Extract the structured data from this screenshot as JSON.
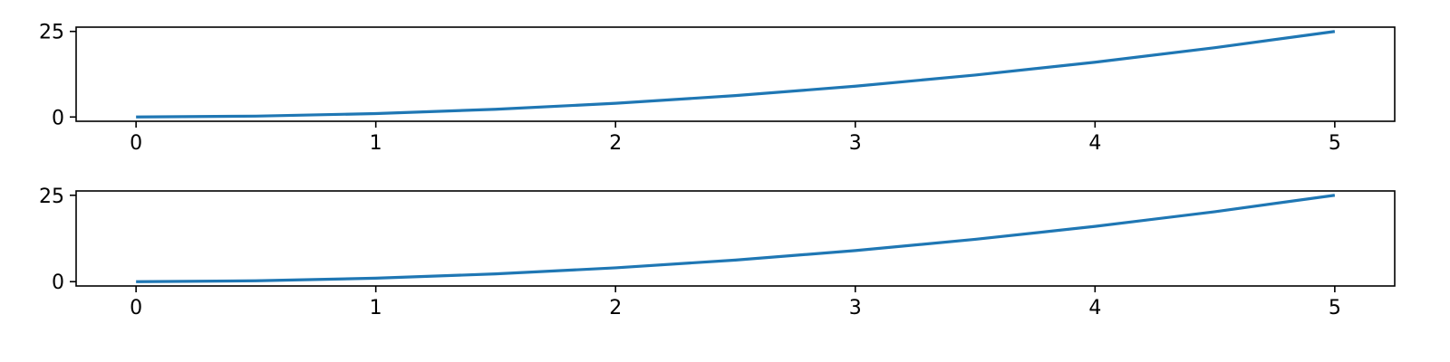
{
  "chart_data": [
    {
      "type": "line",
      "title": "",
      "xlabel": "",
      "ylabel": "",
      "xlim": [
        -0.25,
        5.25
      ],
      "ylim": [
        -1.25,
        26.25
      ],
      "xticks": [
        0,
        1,
        2,
        3,
        4,
        5
      ],
      "xtick_labels": [
        "0",
        "1",
        "2",
        "3",
        "4",
        "5"
      ],
      "yticks": [
        0,
        25
      ],
      "ytick_labels": [
        "0",
        "25"
      ],
      "grid": false,
      "series": [
        {
          "color": "#1f77b4",
          "x": [
            0,
            0.5,
            1,
            1.5,
            2,
            2.5,
            3,
            3.5,
            4,
            4.5,
            5
          ],
          "y": [
            0,
            0.25,
            1,
            2.25,
            4,
            6.25,
            9,
            12.25,
            16,
            20.25,
            25
          ]
        }
      ]
    },
    {
      "type": "line",
      "title": "",
      "xlabel": "",
      "ylabel": "",
      "xlim": [
        -0.25,
        5.25
      ],
      "ylim": [
        -1.25,
        26.25
      ],
      "xticks": [
        0,
        1,
        2,
        3,
        4,
        5
      ],
      "xtick_labels": [
        "0",
        "1",
        "2",
        "3",
        "4",
        "5"
      ],
      "yticks": [
        0,
        25
      ],
      "ytick_labels": [
        "0",
        "25"
      ],
      "grid": false,
      "series": [
        {
          "color": "#1f77b4",
          "x": [
            0,
            0.5,
            1,
            1.5,
            2,
            2.5,
            3,
            3.5,
            4,
            4.5,
            5
          ],
          "y": [
            0,
            0.25,
            1,
            2.25,
            4,
            6.25,
            9,
            12.25,
            16,
            20.25,
            25
          ]
        }
      ]
    }
  ]
}
